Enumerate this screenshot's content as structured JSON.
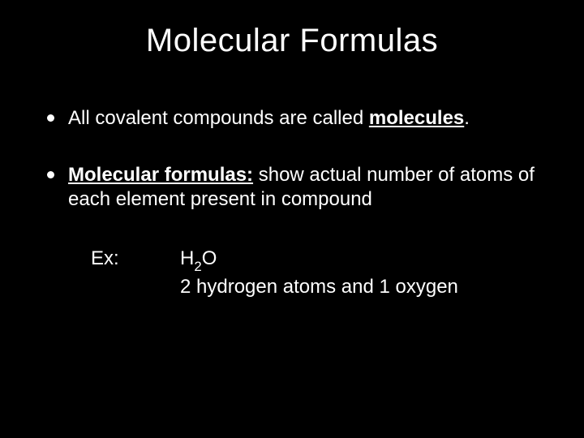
{
  "slide": {
    "title": "Molecular Formulas",
    "background_color": "#000000",
    "text_color": "#ffffff",
    "title_fontsize": 40,
    "body_fontsize": 24,
    "bullets": [
      {
        "prefix": "All covalent compounds are called ",
        "emphasis": "molecules",
        "suffix": "."
      },
      {
        "emphasis": "Molecular formulas:",
        "rest": " show actual number of atoms of each element present in compound"
      }
    ],
    "example": {
      "label": "Ex:",
      "formula_pre": "H",
      "formula_sub": "2",
      "formula_post": "O",
      "description": "2 hydrogen atoms and 1 oxygen"
    }
  }
}
